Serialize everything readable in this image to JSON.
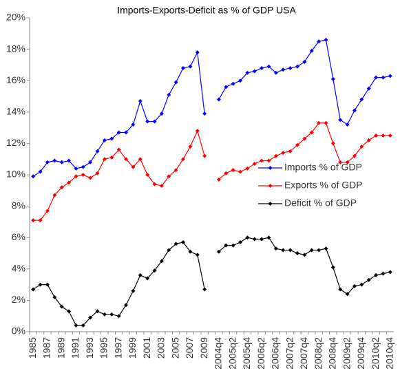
{
  "chart_data": {
    "type": "line",
    "title": "Imports-Exports-Deficit as % of GDP USA",
    "categories": [
      "1985",
      null,
      "1987",
      null,
      "1989",
      null,
      "1991",
      null,
      "1993",
      null,
      "1995",
      null,
      "1997",
      null,
      "1999",
      null,
      "2001",
      null,
      "2003",
      null,
      "2005",
      null,
      "2007",
      null,
      "2009",
      null,
      "2004q4",
      null,
      "2005q2",
      null,
      "2005q4",
      null,
      "2006q2",
      null,
      "2006q4",
      null,
      "2007q2",
      null,
      "2007q4",
      null,
      "2008q2",
      null,
      "2008q4",
      null,
      "2009q2",
      null,
      "2009q4",
      null,
      "2010q2",
      null,
      "2010q4"
    ],
    "series": [
      {
        "name": "Imports % of GDP",
        "color": "#0000ff",
        "values": [
          9.9,
          10.2,
          10.8,
          10.9,
          10.8,
          10.9,
          10.4,
          10.5,
          10.8,
          11.5,
          12.2,
          12.3,
          12.7,
          12.7,
          13.2,
          14.7,
          13.4,
          13.4,
          13.9,
          15.1,
          15.9,
          16.8,
          16.9,
          17.8,
          13.9,
          null,
          14.8,
          15.6,
          15.8,
          16.0,
          16.5,
          16.6,
          16.8,
          16.9,
          16.5,
          16.7,
          16.8,
          16.9,
          17.2,
          17.9,
          18.5,
          18.6,
          16.1,
          13.5,
          13.2,
          14.1,
          14.8,
          15.5,
          16.2,
          16.2,
          16.3
        ]
      },
      {
        "name": "Exports % of GDP",
        "color": "#ff0000",
        "values": [
          7.1,
          7.1,
          7.7,
          8.7,
          9.2,
          9.5,
          9.9,
          10.0,
          9.8,
          10.1,
          11.0,
          11.1,
          11.6,
          11.0,
          10.5,
          11.0,
          10.0,
          9.4,
          9.3,
          9.9,
          10.3,
          11.0,
          11.8,
          12.8,
          11.2,
          null,
          9.7,
          10.1,
          10.3,
          10.2,
          10.4,
          10.7,
          10.9,
          10.9,
          11.2,
          11.4,
          11.5,
          11.9,
          12.3,
          12.7,
          13.3,
          13.3,
          12.0,
          10.8,
          10.8,
          11.2,
          11.8,
          12.2,
          12.5,
          12.5,
          12.5
        ]
      },
      {
        "name": "Deficit % of GDP",
        "color": "#000000",
        "values": [
          2.7,
          3.0,
          3.0,
          2.2,
          1.6,
          1.3,
          0.4,
          0.4,
          0.9,
          1.3,
          1.1,
          1.1,
          1.0,
          1.7,
          2.6,
          3.6,
          3.4,
          3.9,
          4.5,
          5.2,
          5.6,
          5.7,
          5.1,
          4.9,
          2.7,
          null,
          5.1,
          5.5,
          5.5,
          5.7,
          6.0,
          5.9,
          5.9,
          6.0,
          5.3,
          5.2,
          5.2,
          5.0,
          4.9,
          5.2,
          5.2,
          5.3,
          4.1,
          2.7,
          2.4,
          2.9,
          3.0,
          3.3,
          3.6,
          3.7,
          3.8
        ]
      }
    ],
    "ylim": [
      0,
      20
    ],
    "yticks": [
      {
        "value": 0,
        "label": "0%"
      },
      {
        "value": 2,
        "label": "2%"
      },
      {
        "value": 4,
        "label": "4%"
      },
      {
        "value": 6,
        "label": "6%"
      },
      {
        "value": 8,
        "label": "8%"
      },
      {
        "value": 10,
        "label": "10%"
      },
      {
        "value": 12,
        "label": "12%"
      },
      {
        "value": 14,
        "label": "14%"
      },
      {
        "value": 16,
        "label": "16%"
      },
      {
        "value": 18,
        "label": "18%"
      },
      {
        "value": 20,
        "label": "20%"
      }
    ],
    "grid": false,
    "legend": "right"
  }
}
